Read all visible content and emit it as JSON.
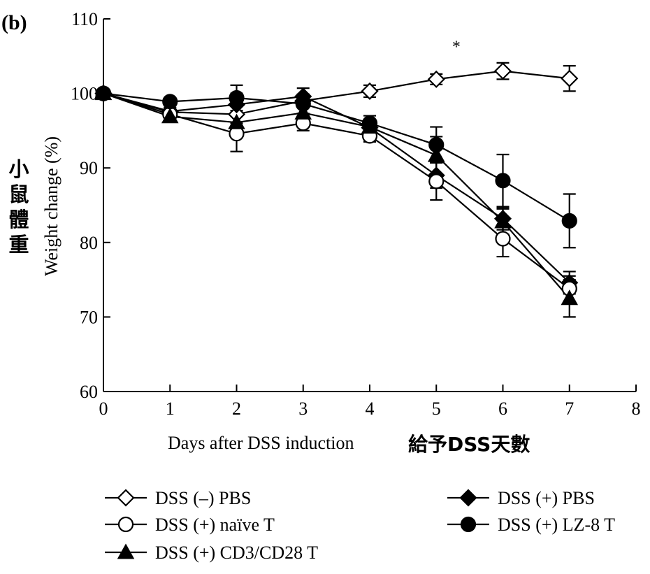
{
  "panel_label": "(b)",
  "chart_data": {
    "type": "line",
    "title": "",
    "xlabel": "Days after DSS induction",
    "xlabel_cjk": "給予DSS天數",
    "ylabel": "Weight change (%)",
    "ylabel_cjk": [
      "小",
      "鼠",
      "體",
      "重"
    ],
    "xlim": [
      0,
      8
    ],
    "ylim": [
      60,
      110
    ],
    "xticks": [
      0,
      1,
      2,
      3,
      4,
      5,
      6,
      7,
      8
    ],
    "yticks": [
      60,
      70,
      80,
      90,
      100,
      110
    ],
    "grid": false,
    "legend_position": "bottom",
    "annotation": {
      "text": "*",
      "x": 5.3,
      "y": 106.5
    },
    "x": [
      0,
      1,
      2,
      3,
      4,
      5,
      6,
      7
    ],
    "series": [
      {
        "name": "DSS (–) PBS",
        "marker": "diamond-open",
        "values": [
          100,
          97.5,
          97.2,
          99,
          100.3,
          101.9,
          103,
          102
        ],
        "errors": [
          0,
          0.5,
          1.2,
          0.5,
          0.8,
          0.7,
          1.1,
          1.7
        ]
      },
      {
        "name": "DSS (+) PBS",
        "marker": "diamond-filled",
        "values": [
          100,
          97.6,
          98.5,
          99.6,
          95.4,
          89,
          83.2,
          74.6
        ],
        "errors": [
          0,
          0.5,
          1.5,
          1.1,
          1,
          1.7,
          1.5,
          1.5
        ]
      },
      {
        "name": "DSS (+) naïve T",
        "marker": "circle-open",
        "values": [
          100,
          97.2,
          94.6,
          96,
          94.3,
          88.2,
          80.5,
          73.8
        ],
        "errors": [
          0,
          0.5,
          2.4,
          1,
          0.8,
          2.5,
          2.4,
          1.7
        ]
      },
      {
        "name": "DSS (+) LZ-8 T",
        "marker": "circle-filled",
        "values": [
          100,
          98.9,
          99.4,
          98.6,
          96,
          93.1,
          88.3,
          82.9
        ],
        "errors": [
          0,
          0.5,
          1.7,
          1.3,
          1,
          2.4,
          3.5,
          3.6
        ]
      },
      {
        "name": "DSS (+) CD3/CD28 T",
        "marker": "triangle-filled",
        "values": [
          100,
          96.9,
          96.1,
          97.4,
          95.5,
          91.7,
          82.8,
          72.5
        ],
        "errors": [
          0,
          0.5,
          1.2,
          1.2,
          1,
          2.5,
          1.7,
          2.5
        ]
      }
    ],
    "legend_layout": [
      {
        "series": 0,
        "col": 0,
        "row": 0
      },
      {
        "series": 1,
        "col": 1,
        "row": 0
      },
      {
        "series": 2,
        "col": 0,
        "row": 1
      },
      {
        "series": 3,
        "col": 1,
        "row": 1
      },
      {
        "series": 4,
        "col": 0,
        "row": 2
      }
    ]
  }
}
